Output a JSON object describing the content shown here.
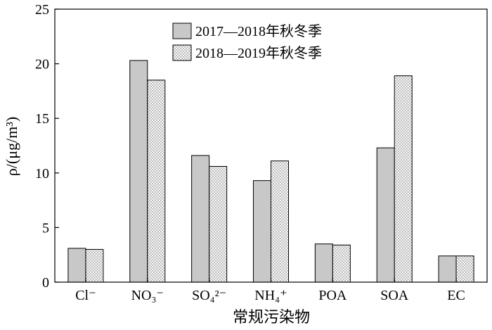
{
  "chart_data": {
    "type": "bar",
    "categories": [
      "Cl⁻",
      "NO₃⁻",
      "SO₄²⁻",
      "NH₄⁺",
      "POA",
      "SOA",
      "EC"
    ],
    "series": [
      {
        "name": "2017—2018年秋冬季",
        "values": [
          3.1,
          20.3,
          11.6,
          9.3,
          3.5,
          12.3,
          2.4
        ],
        "color": "#c8c8c8",
        "fill": "solid"
      },
      {
        "name": "2018—2019年秋冬季",
        "values": [
          3.0,
          18.5,
          10.6,
          11.1,
          3.4,
          18.9,
          2.4
        ],
        "color": "#f3f3f3",
        "fill": "dotted"
      }
    ],
    "title": "",
    "xlabel": "常规污染物",
    "ylabel": "ρ/(μg/m³)",
    "ylim": [
      0,
      25
    ],
    "yticks": [
      0,
      5,
      10,
      15,
      20,
      25
    ],
    "ytick_labels": [
      "0",
      "5",
      "10",
      "15",
      "20",
      "25"
    ],
    "grid": false,
    "legend_position": "top-center"
  }
}
